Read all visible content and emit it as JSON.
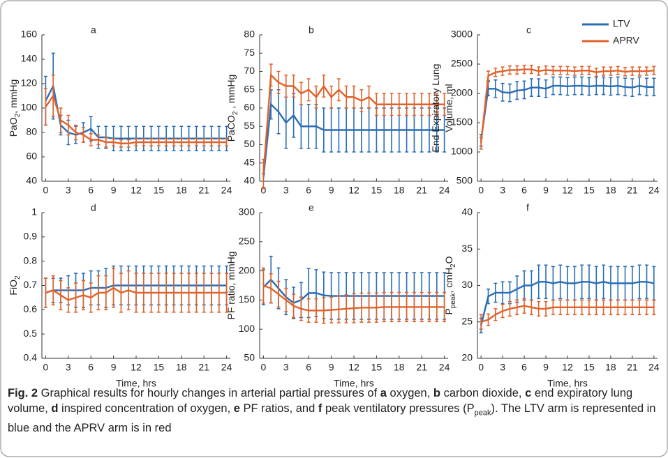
{
  "chart_data": [
    {
      "type": "errorbar-line",
      "title": "a",
      "ylabel": [
        [
          "PaO",
          {
            "text": "2",
            "sub": true
          },
          ", mmHg"
        ]
      ],
      "x": [
        0,
        1,
        2,
        3,
        4,
        5,
        6,
        7,
        8,
        9,
        10,
        11,
        12,
        13,
        14,
        15,
        16,
        17,
        18,
        19,
        20,
        21,
        22,
        23,
        24
      ],
      "xlim": [
        -0.5,
        24.5
      ],
      "xticks": [
        0,
        3,
        6,
        9,
        12,
        15,
        18,
        21,
        24
      ],
      "ylim": [
        40,
        160
      ],
      "yticks": [
        40,
        60,
        80,
        100,
        120,
        140,
        160
      ],
      "series": [
        {
          "color": "#2a6db5",
          "values": [
            106,
            118,
            86,
            80,
            78,
            80,
            83,
            76,
            76,
            75,
            75,
            75,
            75,
            75,
            75,
            75,
            75,
            75,
            75,
            75,
            75,
            75,
            75,
            75,
            75
          ],
          "errors": [
            20,
            27,
            8,
            10,
            7,
            8,
            10,
            9,
            9,
            10,
            10,
            10,
            10,
            10,
            10,
            10,
            10,
            10,
            10,
            10,
            10,
            10,
            10,
            10,
            10
          ]
        },
        {
          "color": "#e0622a",
          "values": [
            101,
            110,
            90,
            86,
            80,
            78,
            74,
            74,
            72,
            72,
            71,
            71,
            72,
            72,
            72,
            72,
            72,
            72,
            72,
            72,
            72,
            72,
            72,
            72,
            72
          ],
          "errors": [
            15,
            17,
            10,
            8,
            6,
            6,
            5,
            4,
            4,
            3,
            3,
            3,
            3,
            3,
            3,
            3,
            3,
            3,
            3,
            3,
            3,
            3,
            3,
            3,
            3
          ]
        }
      ]
    },
    {
      "type": "errorbar-line",
      "title": "b",
      "ylabel": [
        [
          "PaCO",
          {
            "text": "2",
            "sub": true
          },
          " , mmHg"
        ]
      ],
      "x": [
        0,
        1,
        2,
        3,
        4,
        5,
        6,
        7,
        8,
        9,
        10,
        11,
        12,
        13,
        14,
        15,
        16,
        17,
        18,
        19,
        20,
        21,
        22,
        23,
        24
      ],
      "xlim": [
        -0.5,
        24.5
      ],
      "xticks": [
        0,
        3,
        6,
        9,
        12,
        15,
        18,
        21,
        24
      ],
      "ylim": [
        40,
        80
      ],
      "yticks": [
        40,
        45,
        50,
        55,
        60,
        65,
        70,
        75,
        80
      ],
      "series": [
        {
          "color": "#2a6db5",
          "values": [
            41,
            61,
            59,
            56,
            58,
            55,
            55,
            55,
            54,
            54,
            54,
            54,
            54,
            54,
            54,
            54,
            54,
            54,
            54,
            54,
            54,
            54,
            54,
            54,
            54
          ],
          "errors": [
            1,
            4,
            6,
            7,
            6,
            6,
            6,
            6,
            6,
            6,
            6,
            6,
            6,
            6,
            6,
            6,
            6,
            6,
            6,
            6,
            6,
            6,
            6,
            6,
            6
          ]
        },
        {
          "color": "#e0622a",
          "values": [
            42,
            69,
            67,
            66,
            66,
            64,
            65,
            63,
            66,
            63,
            65,
            63,
            63,
            62,
            63,
            61,
            61,
            61,
            61,
            61,
            61,
            61,
            61,
            61,
            61
          ],
          "errors": [
            4,
            3,
            3,
            3,
            3,
            3,
            3,
            3,
            3,
            3,
            3,
            3,
            3,
            3,
            3,
            3,
            3,
            3,
            3,
            3,
            3,
            3,
            3,
            3,
            3
          ]
        }
      ]
    },
    {
      "type": "errorbar-line",
      "title": "c",
      "ylabel": [
        [
          "End Expiratory Lung"
        ],
        [
          "Volume, ml"
        ]
      ],
      "x": [
        0,
        1,
        2,
        3,
        4,
        5,
        6,
        7,
        8,
        9,
        10,
        11,
        12,
        13,
        14,
        15,
        16,
        17,
        18,
        19,
        20,
        21,
        22,
        23,
        24
      ],
      "xlim": [
        -0.5,
        24.5
      ],
      "xticks": [
        0,
        3,
        6,
        9,
        12,
        15,
        18,
        21,
        24
      ],
      "ylim": [
        500,
        3000
      ],
      "yticks": [
        500,
        1000,
        1500,
        2000,
        2500,
        3000
      ],
      "legend": [
        {
          "name": "LTV",
          "color": "#2a6db5"
        },
        {
          "name": "APRV",
          "color": "#e0622a"
        }
      ],
      "series": [
        {
          "color": "#2a6db5",
          "values": [
            1200,
            2080,
            2080,
            2020,
            2010,
            2050,
            2060,
            2100,
            2100,
            2080,
            2130,
            2130,
            2120,
            2130,
            2130,
            2120,
            2130,
            2130,
            2120,
            2130,
            2110,
            2100,
            2130,
            2110,
            2110
          ],
          "errors": [
            100,
            120,
            150,
            150,
            150,
            150,
            150,
            150,
            150,
            150,
            150,
            150,
            150,
            150,
            150,
            150,
            150,
            150,
            150,
            150,
            150,
            150,
            150,
            150,
            150
          ]
        },
        {
          "color": "#e0622a",
          "values": [
            1150,
            2300,
            2360,
            2380,
            2400,
            2400,
            2410,
            2410,
            2380,
            2400,
            2390,
            2390,
            2390,
            2380,
            2390,
            2390,
            2360,
            2380,
            2380,
            2390,
            2370,
            2380,
            2380,
            2380,
            2390
          ],
          "errors": [
            100,
            80,
            70,
            70,
            70,
            70,
            70,
            70,
            70,
            70,
            70,
            70,
            70,
            70,
            70,
            70,
            70,
            70,
            70,
            70,
            70,
            70,
            70,
            70,
            70
          ]
        }
      ]
    },
    {
      "type": "errorbar-line",
      "title": "d",
      "ylabel": [
        [
          "FiO",
          {
            "text": "2",
            "sub": true
          }
        ]
      ],
      "xlabel": "Time, hrs",
      "x": [
        0,
        1,
        2,
        3,
        4,
        5,
        6,
        7,
        8,
        9,
        10,
        11,
        12,
        13,
        14,
        15,
        16,
        17,
        18,
        19,
        20,
        21,
        22,
        23,
        24
      ],
      "xlim": [
        -0.5,
        24.5
      ],
      "xticks": [
        0,
        3,
        6,
        9,
        12,
        15,
        18,
        21,
        24
      ],
      "ylim": [
        0.4,
        1
      ],
      "yticks": [
        0.4,
        0.5,
        0.6,
        0.7,
        0.8,
        0.9,
        1
      ],
      "series": [
        {
          "color": "#2a6db5",
          "values": [
            0.67,
            0.68,
            0.68,
            0.68,
            0.68,
            0.68,
            0.69,
            0.69,
            0.69,
            0.7,
            0.7,
            0.7,
            0.7,
            0.7,
            0.7,
            0.7,
            0.7,
            0.7,
            0.7,
            0.7,
            0.7,
            0.7,
            0.7,
            0.7,
            0.7
          ],
          "errors": [
            0.06,
            0.05,
            0.05,
            0.06,
            0.07,
            0.07,
            0.07,
            0.07,
            0.08,
            0.08,
            0.08,
            0.08,
            0.08,
            0.08,
            0.08,
            0.08,
            0.08,
            0.08,
            0.08,
            0.08,
            0.08,
            0.08,
            0.08,
            0.08,
            0.08
          ]
        },
        {
          "color": "#e0622a",
          "values": [
            0.67,
            0.68,
            0.66,
            0.64,
            0.65,
            0.66,
            0.65,
            0.67,
            0.67,
            0.69,
            0.67,
            0.68,
            0.67,
            0.67,
            0.67,
            0.67,
            0.67,
            0.67,
            0.67,
            0.67,
            0.67,
            0.67,
            0.67,
            0.67,
            0.67
          ],
          "errors": [
            0.06,
            0.06,
            0.06,
            0.05,
            0.06,
            0.06,
            0.06,
            0.07,
            0.07,
            0.08,
            0.08,
            0.08,
            0.08,
            0.08,
            0.08,
            0.08,
            0.08,
            0.08,
            0.08,
            0.08,
            0.08,
            0.08,
            0.08,
            0.08,
            0.08
          ]
        }
      ]
    },
    {
      "type": "errorbar-line",
      "title": "e",
      "ylabel": [
        [
          "PF ratio, mmHg"
        ]
      ],
      "xlabel": "Time, hrs",
      "x": [
        0,
        1,
        2,
        3,
        4,
        5,
        6,
        7,
        8,
        9,
        10,
        11,
        12,
        13,
        14,
        15,
        16,
        17,
        18,
        19,
        20,
        21,
        22,
        23,
        24
      ],
      "xlim": [
        -0.5,
        24.5
      ],
      "xticks": [
        0,
        3,
        6,
        9,
        12,
        15,
        18,
        21,
        24
      ],
      "ylim": [
        50,
        300
      ],
      "yticks": [
        50,
        100,
        150,
        200,
        250,
        300
      ],
      "series": [
        {
          "color": "#2a6db5",
          "values": [
            172,
            185,
            170,
            155,
            145,
            150,
            162,
            162,
            158,
            157,
            157,
            157,
            157,
            157,
            157,
            157,
            157,
            157,
            157,
            157,
            157,
            157,
            157,
            157,
            157
          ],
          "errors": [
            30,
            40,
            35,
            30,
            27,
            30,
            42,
            40,
            40,
            40,
            40,
            40,
            40,
            40,
            40,
            40,
            40,
            40,
            40,
            40,
            40,
            40,
            40,
            40,
            40
          ]
        },
        {
          "color": "#e0622a",
          "values": [
            175,
            170,
            160,
            150,
            140,
            135,
            132,
            132,
            132,
            133,
            134,
            135,
            136,
            137,
            137,
            137,
            138,
            138,
            138,
            138,
            138,
            138,
            138,
            138,
            138
          ],
          "errors": [
            30,
            25,
            22,
            20,
            20,
            20,
            20,
            20,
            22,
            22,
            23,
            24,
            25,
            25,
            25,
            25,
            25,
            25,
            25,
            25,
            25,
            25,
            25,
            25,
            25
          ]
        }
      ]
    },
    {
      "type": "errorbar-line",
      "title": "f",
      "ylabel": [
        [
          "P",
          {
            "text": "peak",
            "sub": true
          },
          ", cmH",
          {
            "text": "2",
            "sub": true
          },
          "O"
        ]
      ],
      "xlabel": "Time, hrs",
      "x": [
        0,
        1,
        2,
        3,
        4,
        5,
        6,
        7,
        8,
        9,
        10,
        11,
        12,
        13,
        14,
        15,
        16,
        17,
        18,
        19,
        20,
        21,
        22,
        23,
        24
      ],
      "xlim": [
        -0.5,
        24.5
      ],
      "xticks": [
        0,
        3,
        6,
        9,
        12,
        15,
        18,
        21,
        24
      ],
      "ylim": [
        20,
        40
      ],
      "yticks": [
        20,
        25,
        30,
        35,
        40
      ],
      "series": [
        {
          "color": "#2a6db5",
          "values": [
            24.5,
            28.5,
            29,
            29,
            29,
            29.5,
            30,
            30,
            30.5,
            30.5,
            30.3,
            30.5,
            30.3,
            30.3,
            30.5,
            30.5,
            30.3,
            30.5,
            30.3,
            30.3,
            30.3,
            30.3,
            30.5,
            30.5,
            30.3
          ],
          "errors": [
            1,
            1,
            1.3,
            1.5,
            1.5,
            1.8,
            2,
            2,
            2.3,
            2.3,
            2.3,
            2.3,
            2.3,
            2.3,
            2.3,
            2.3,
            2.3,
            2.3,
            2.3,
            2.3,
            2.3,
            2.3,
            2.3,
            2.3,
            2.3
          ]
        },
        {
          "color": "#e0622a",
          "values": [
            25,
            25.3,
            26,
            26.5,
            26.8,
            27,
            27.2,
            27,
            26.8,
            26.8,
            27,
            27,
            27,
            27,
            27,
            27,
            27,
            27,
            27,
            27,
            27,
            27,
            27,
            27,
            27
          ],
          "errors": [
            1,
            0.8,
            0.8,
            0.9,
            1,
            1,
            1,
            1,
            1,
            1,
            1,
            1,
            1,
            1,
            1,
            1,
            1,
            1,
            1,
            1,
            1,
            1,
            1,
            1,
            1
          ]
        }
      ]
    }
  ],
  "caption": [
    {
      "text": "Fig. 2",
      "bold": true
    },
    " Graphical results for hourly changes in arterial partial pressures of ",
    {
      "text": "a",
      "bold": true
    },
    " oxygen, ",
    {
      "text": "b",
      "bold": true
    },
    " carbon dioxide, ",
    {
      "text": "c",
      "bold": true
    },
    " end expiratory lung volume, ",
    {
      "text": "d",
      "bold": true
    },
    " inspired concentration of oxygen, ",
    {
      "text": "e",
      "bold": true
    },
    " PF ratios, and ",
    {
      "text": "f",
      "bold": true
    },
    " peak ventilatory pressures (P",
    {
      "text": "peak",
      "sub": true
    },
    "). The LTV arm is represented in blue and the APRV arm is in red"
  ]
}
